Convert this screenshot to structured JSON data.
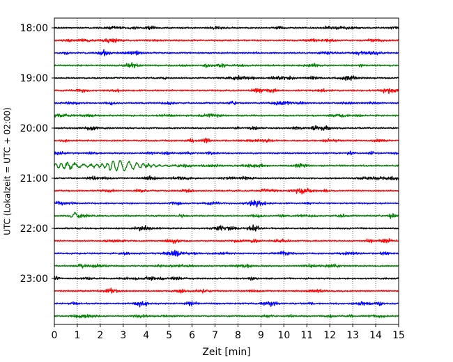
{
  "chart_data": {
    "type": "line",
    "title": "",
    "xlabel": "Zeit  [min]",
    "ylabel": "UTC (Lokalzeit = UTC + 02:00)",
    "xlim": [
      0,
      15
    ],
    "x_ticks": [
      "0",
      "1",
      "2",
      "3",
      "4",
      "5",
      "6",
      "7",
      "8",
      "9",
      "10",
      "11",
      "12",
      "13",
      "14",
      "15"
    ],
    "y_tick_labels": [
      "18:00",
      "19:00",
      "20:00",
      "21:00",
      "22:00",
      "23:00"
    ],
    "grid": "vertical dotted",
    "trace_colors": [
      "#000000",
      "#ff0000",
      "#0000ff",
      "#008000"
    ],
    "traces": [
      {
        "start": "18:00",
        "color": "#000000"
      },
      {
        "start": "18:15",
        "color": "#ff0000"
      },
      {
        "start": "18:30",
        "color": "#0000ff"
      },
      {
        "start": "18:45",
        "color": "#008000"
      },
      {
        "start": "19:00",
        "color": "#000000"
      },
      {
        "start": "19:15",
        "color": "#ff0000"
      },
      {
        "start": "19:30",
        "color": "#0000ff"
      },
      {
        "start": "19:45",
        "color": "#008000"
      },
      {
        "start": "20:00",
        "color": "#000000"
      },
      {
        "start": "20:15",
        "color": "#ff0000"
      },
      {
        "start": "20:30",
        "color": "#0000ff"
      },
      {
        "start": "20:45",
        "color": "#008000"
      },
      {
        "start": "21:00",
        "color": "#000000"
      },
      {
        "start": "21:15",
        "color": "#ff0000"
      },
      {
        "start": "21:30",
        "color": "#0000ff"
      },
      {
        "start": "21:45",
        "color": "#008000"
      },
      {
        "start": "22:00",
        "color": "#000000"
      },
      {
        "start": "22:15",
        "color": "#ff0000"
      },
      {
        "start": "22:30",
        "color": "#0000ff"
      },
      {
        "start": "22:45",
        "color": "#008000"
      },
      {
        "start": "23:00",
        "color": "#000000"
      },
      {
        "start": "23:15",
        "color": "#ff0000"
      },
      {
        "start": "23:30",
        "color": "#0000ff"
      },
      {
        "start": "23:45",
        "color": "#008000"
      }
    ],
    "events": [
      {
        "trace": "20:45",
        "t_start": 0.0,
        "t_peak": 3.0,
        "t_end": 5.5,
        "amplitude": "large"
      },
      {
        "trace": "21:45",
        "t_start": 0.7,
        "t_peak": 0.9,
        "t_end": 1.3,
        "amplitude": "medium"
      }
    ]
  }
}
